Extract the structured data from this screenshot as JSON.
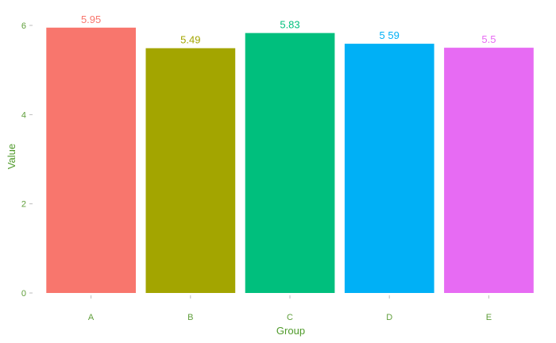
{
  "chart_data": {
    "type": "bar",
    "categories": [
      "A",
      "B",
      "C",
      "D",
      "E"
    ],
    "values": [
      5.95,
      5.49,
      5.83,
      5.59,
      5.5
    ],
    "data_labels": [
      "5.95",
      "5.49",
      "5.83",
      "5 59",
      "5.5"
    ],
    "colors": [
      "#F8766D",
      "#A3A500",
      "#00BF7D",
      "#00B0F6",
      "#E76BF3"
    ],
    "title": "",
    "xlabel": "Group",
    "ylabel": "Value",
    "ylim": [
      0,
      6.25
    ],
    "yticks": [
      0,
      2,
      4,
      6
    ],
    "ytick_labels": [
      "0",
      "2",
      "4",
      "6"
    ],
    "grid": false,
    "legend": "none",
    "axis_text_color": "#5f9e3a",
    "axis_title_color": "#4f9a2a",
    "tick_color": "#bdbdbd"
  }
}
